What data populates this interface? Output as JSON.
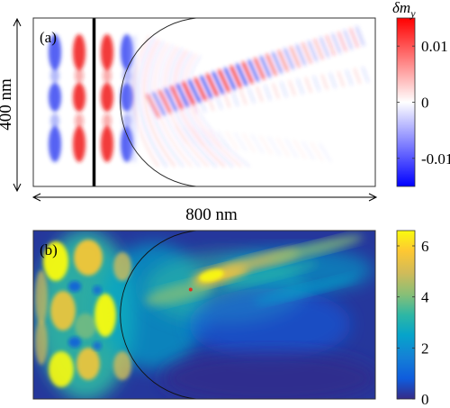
{
  "chart_data": [
    {
      "type": "heatmap",
      "panel_label": "(a)",
      "quantity": "δm_y",
      "colorbar": {
        "label_main": "δm",
        "label_sub": "y",
        "range": [
          -0.015,
          0.015
        ],
        "ticks": [
          0.01,
          0,
          -0.01
        ],
        "tick_labels": [
          "0.01",
          "0",
          "-0.01"
        ],
        "colormap": "blue-white-red",
        "colors": {
          "negative": "#0000ff",
          "zero": "#ffffff",
          "positive": "#ff0000"
        }
      },
      "dimension_x_label": "800 nm",
      "dimension_y_label": "400 nm",
      "domain_nm": {
        "x": [
          0,
          800
        ],
        "y": [
          0,
          400
        ]
      },
      "source_line_x_nm": 142,
      "lens": {
        "shape": "semicircle",
        "center_x_nm": 345,
        "center_y_nm": 200,
        "radius_nm": 200
      }
    },
    {
      "type": "heatmap",
      "panel_label": "(b)",
      "colorbar": {
        "range": [
          0,
          6.6
        ],
        "ticks": [
          6,
          4,
          2,
          0
        ],
        "tick_labels": [
          "6",
          "4",
          "2",
          "0"
        ],
        "colormap": "parula",
        "colors": [
          "#352a87",
          "#0f5cdd",
          "#1481d6",
          "#06a4ca",
          "#2eb7a4",
          "#87bf77",
          "#d1bb59",
          "#fec832",
          "#f9fb0e"
        ]
      },
      "marker": {
        "x_nm": 368,
        "y_nm": 140,
        "color": "#e03020"
      }
    }
  ]
}
